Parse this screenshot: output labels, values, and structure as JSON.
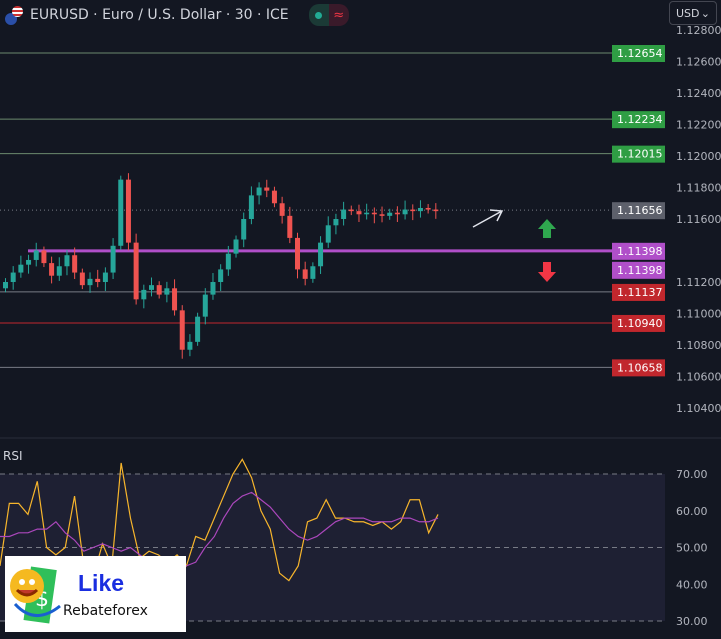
{
  "header": {
    "symbol_title": "EURUSD · Euro / U.S. Dollar · 30 · ICE",
    "market_status_icon": "market-open-dot",
    "data_icon": "≈",
    "currency_select": "USD"
  },
  "colors": {
    "up": "#26a69a",
    "down": "#ef5350",
    "rsi": "#f7b52c",
    "rsi_ma": "#ab47bc",
    "level_purple": "#b04fc9",
    "label_green": "#2f9e44",
    "label_red": "#c1272d",
    "label_gray": "#5d606b"
  },
  "price_axis": {
    "ticks": [
      "1.12800",
      "1.12600",
      "1.12400",
      "1.12200",
      "1.12000",
      "1.11800",
      "1.11600",
      "1.11200",
      "1.11000",
      "1.10800",
      "1.10600",
      "1.10400"
    ]
  },
  "price_labels": [
    {
      "value": "1.12654",
      "kind": "green"
    },
    {
      "value": "1.12234",
      "kind": "green"
    },
    {
      "value": "1.12015",
      "kind": "green"
    },
    {
      "value": "1.11656",
      "kind": "gray"
    },
    {
      "value": "1.11398",
      "kind": "purple"
    },
    {
      "value": "1.11398",
      "kind": "purple"
    },
    {
      "value": "1.11137",
      "kind": "red"
    },
    {
      "value": "1.10940",
      "kind": "red"
    },
    {
      "value": "1.10658",
      "kind": "red"
    }
  ],
  "indicator": {
    "label": "RSI",
    "ticks": [
      "70.00",
      "60.00",
      "50.00",
      "40.00",
      "30.00"
    ]
  },
  "chart_data": {
    "type": "candlestick",
    "closes": [
      1.112,
      1.1126,
      1.1131,
      1.1134,
      1.114,
      1.1132,
      1.1124,
      1.113,
      1.1137,
      1.1126,
      1.1118,
      1.1122,
      1.112,
      1.1126,
      1.1143,
      1.1185,
      1.1145,
      1.1109,
      1.1115,
      1.1118,
      1.1112,
      1.1116,
      1.1102,
      1.1077,
      1.1082,
      1.1098,
      1.1112,
      1.112,
      1.1128,
      1.1138,
      1.1147,
      1.116,
      1.1175,
      1.118,
      1.1178,
      1.117,
      1.1162,
      1.1148,
      1.1128,
      1.1122,
      1.113,
      1.1145,
      1.1156,
      1.116,
      1.1166,
      1.1165,
      1.1163,
      1.1164,
      1.1163,
      1.1162,
      1.1164,
      1.1163,
      1.1166,
      1.1165,
      1.1167,
      1.1166,
      1.1165
    ],
    "rsi": [
      45,
      62,
      62,
      59,
      68,
      50,
      48,
      50,
      64,
      45,
      42,
      51,
      45,
      73,
      58,
      47,
      49,
      48,
      46,
      48,
      45,
      53,
      52,
      58,
      64,
      70,
      74,
      69,
      60,
      55,
      43,
      41,
      45,
      57,
      58,
      63,
      58,
      58,
      57,
      57,
      56,
      57,
      55,
      57,
      63,
      63,
      54,
      59
    ],
    "rsi_ma": [
      53,
      53,
      54,
      54,
      55,
      55,
      57,
      54,
      52,
      49,
      50,
      51,
      50,
      49,
      50,
      48,
      46,
      45,
      44,
      44,
      45,
      46,
      50,
      53,
      58,
      62,
      64,
      65,
      63,
      61,
      58,
      55,
      53,
      52,
      53,
      55,
      57,
      58,
      58,
      58,
      57,
      57,
      57,
      58,
      58,
      57,
      57,
      58
    ],
    "rsi_ylim": [
      30,
      70
    ],
    "levels": [
      1.12654,
      1.12234,
      1.12015,
      1.11398,
      1.11137,
      1.1094,
      1.10658
    ],
    "current_price": 1.11656
  },
  "watermark": {
    "line1": "Like",
    "line2": "Rebateforex"
  }
}
